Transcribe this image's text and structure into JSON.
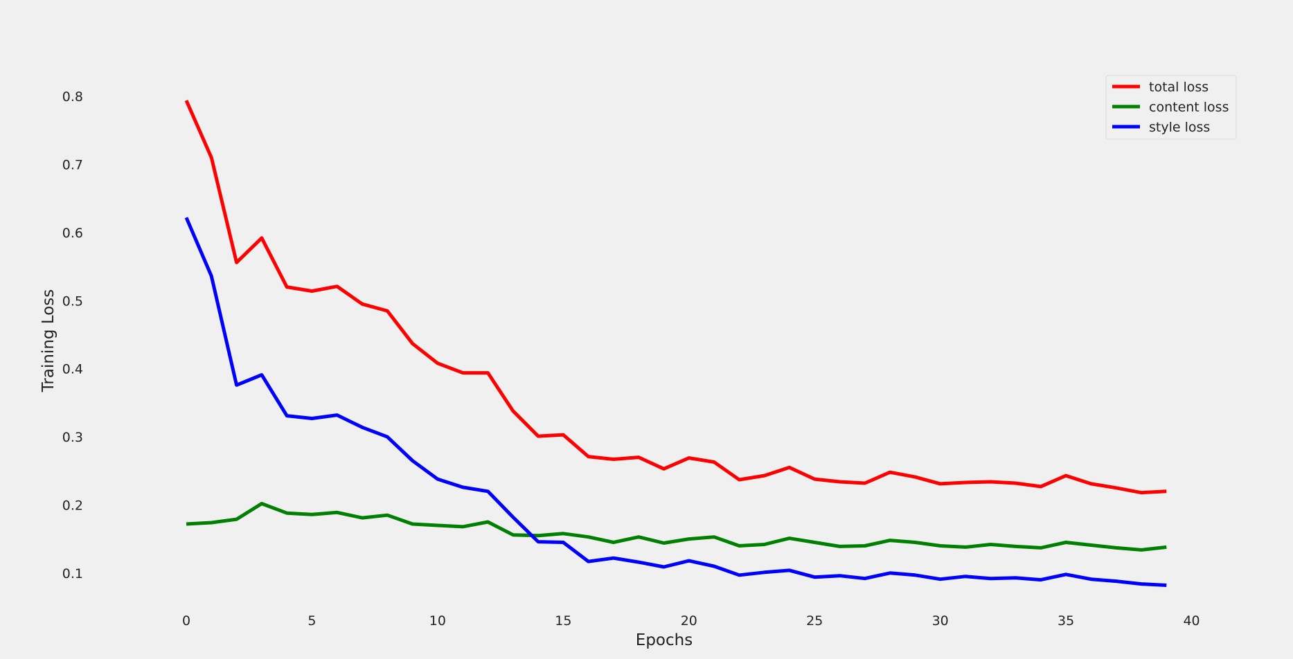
{
  "chart_data": {
    "type": "line",
    "title": "",
    "xlabel": "Epochs",
    "ylabel": "Training Loss",
    "xlim": [
      -3.5,
      41.5
    ],
    "ylim": [
      0.05,
      0.85
    ],
    "xticks": [
      0,
      5,
      10,
      15,
      20,
      25,
      30,
      35,
      40
    ],
    "yticks": [
      0.1,
      0.2,
      0.3,
      0.4,
      0.5,
      0.6,
      0.7,
      0.8
    ],
    "xtick_labels": [
      "0",
      "5",
      "10",
      "15",
      "20",
      "25",
      "30",
      "35",
      "40"
    ],
    "ytick_labels": [
      "0.1",
      "0.2",
      "0.3",
      "0.4",
      "0.5",
      "0.6",
      "0.7",
      "0.8"
    ],
    "grid": false,
    "legend_position": "top-right",
    "x": [
      0,
      1,
      2,
      3,
      4,
      5,
      6,
      7,
      8,
      9,
      10,
      11,
      12,
      13,
      14,
      15,
      16,
      17,
      18,
      19,
      20,
      21,
      22,
      23,
      24,
      25,
      26,
      27,
      28,
      29,
      30,
      31,
      32,
      33,
      34,
      35,
      36,
      37,
      38,
      39
    ],
    "series": [
      {
        "name": "total loss",
        "color": "#ff0000",
        "values": [
          0.794,
          0.71,
          0.556,
          0.592,
          0.52,
          0.514,
          0.521,
          0.495,
          0.485,
          0.437,
          0.408,
          0.394,
          0.394,
          0.338,
          0.301,
          0.303,
          0.271,
          0.267,
          0.27,
          0.253,
          0.269,
          0.263,
          0.237,
          0.243,
          0.255,
          0.238,
          0.234,
          0.232,
          0.248,
          0.241,
          0.231,
          0.233,
          0.234,
          0.232,
          0.227,
          0.243,
          0.231,
          0.225,
          0.218,
          0.22
        ]
      },
      {
        "name": "content loss",
        "color": "#008000",
        "values": [
          0.172,
          0.174,
          0.179,
          0.202,
          0.188,
          0.186,
          0.189,
          0.181,
          0.185,
          0.172,
          0.17,
          0.168,
          0.175,
          0.156,
          0.155,
          0.158,
          0.153,
          0.145,
          0.153,
          0.144,
          0.15,
          0.153,
          0.14,
          0.142,
          0.151,
          0.145,
          0.139,
          0.14,
          0.148,
          0.145,
          0.14,
          0.138,
          0.142,
          0.139,
          0.137,
          0.145,
          0.141,
          0.137,
          0.134,
          0.138
        ]
      },
      {
        "name": "style loss",
        "color": "#0000ff",
        "values": [
          0.622,
          0.536,
          0.376,
          0.391,
          0.331,
          0.327,
          0.332,
          0.314,
          0.3,
          0.265,
          0.238,
          0.226,
          0.22,
          0.182,
          0.146,
          0.145,
          0.117,
          0.122,
          0.116,
          0.109,
          0.118,
          0.11,
          0.097,
          0.101,
          0.104,
          0.094,
          0.096,
          0.092,
          0.1,
          0.097,
          0.091,
          0.095,
          0.092,
          0.093,
          0.09,
          0.098,
          0.091,
          0.088,
          0.084,
          0.082
        ]
      }
    ]
  }
}
